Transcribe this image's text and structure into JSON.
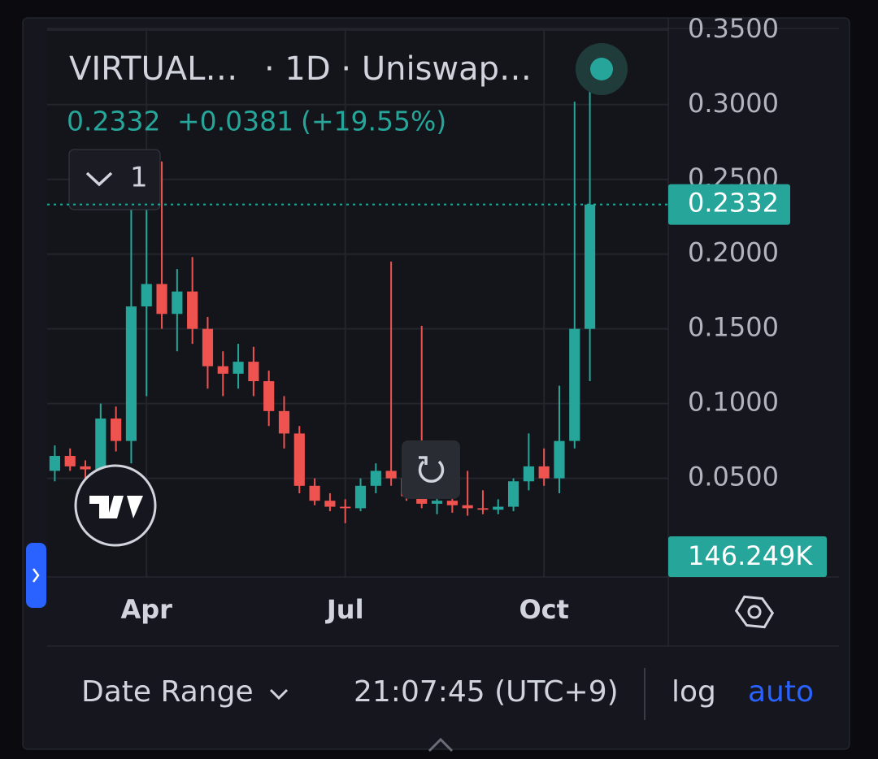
{
  "chart_data": {
    "type": "candlestick",
    "title": "VIRTUAL…",
    "subtitle": "· 1D · Uniswap…",
    "categories": [
      null,
      null,
      null,
      null,
      null,
      null,
      "Apr",
      null,
      null,
      null,
      null,
      null,
      null,
      null,
      null,
      null,
      null,
      null,
      null,
      "Jul",
      null,
      null,
      null,
      null,
      null,
      null,
      null,
      null,
      null,
      null,
      null,
      null,
      "Oct",
      null,
      null,
      null
    ],
    "open": [
      0.055,
      0.065,
      0.058,
      0.056,
      0.09,
      0.075,
      0.165,
      0.18,
      0.16,
      0.175,
      0.15,
      0.125,
      0.12,
      0.128,
      0.115,
      0.095,
      0.08,
      0.045,
      0.035,
      0.031,
      0.03,
      0.045,
      0.055,
      0.05,
      0.038,
      0.033,
      0.035,
      0.032,
      0.03,
      0.029,
      0.031,
      0.048,
      0.058,
      0.05,
      0.075,
      0.15
    ],
    "high": [
      0.072,
      0.07,
      0.062,
      0.1,
      0.098,
      0.235,
      0.23,
      0.262,
      0.19,
      0.198,
      0.158,
      0.135,
      0.14,
      0.138,
      0.122,
      0.105,
      0.085,
      0.05,
      0.04,
      0.036,
      0.05,
      0.06,
      0.195,
      0.06,
      0.152,
      0.045,
      0.042,
      0.055,
      0.042,
      0.036,
      0.05,
      0.08,
      0.07,
      0.112,
      0.302,
      0.316
    ],
    "low": [
      0.048,
      0.055,
      0.05,
      0.055,
      0.068,
      0.06,
      0.105,
      0.15,
      0.135,
      0.14,
      0.11,
      0.105,
      0.11,
      0.105,
      0.085,
      0.07,
      0.04,
      0.032,
      0.028,
      0.02,
      0.028,
      0.04,
      0.045,
      0.035,
      0.03,
      0.026,
      0.027,
      0.025,
      0.026,
      0.026,
      0.028,
      0.042,
      0.045,
      0.04,
      0.07,
      0.115
    ],
    "close": [
      0.065,
      0.058,
      0.056,
      0.09,
      0.075,
      0.165,
      0.18,
      0.16,
      0.175,
      0.15,
      0.125,
      0.12,
      0.128,
      0.115,
      0.095,
      0.08,
      0.045,
      0.035,
      0.031,
      0.03,
      0.045,
      0.055,
      0.05,
      0.038,
      0.033,
      0.035,
      0.032,
      0.03,
      0.029,
      0.031,
      0.048,
      0.058,
      0.05,
      0.075,
      0.15,
      0.2332
    ],
    "up_color": "#26a69a",
    "down_color": "#ef5350",
    "ylim": [
      -0.016,
      0.351
    ],
    "yticks": [
      {
        "value": 0.05,
        "label": "0.0500"
      },
      {
        "value": 0.1,
        "label": "0.1000"
      },
      {
        "value": 0.15,
        "label": "0.1500"
      },
      {
        "value": 0.2,
        "label": "0.2000"
      },
      {
        "value": 0.25,
        "label": "0.2500"
      },
      {
        "value": 0.3,
        "label": "0.3000"
      },
      {
        "value": 0.35,
        "label": "0.3500"
      }
    ],
    "grid": true,
    "change": "+0.0381",
    "change_pct": "(+19.55%)",
    "volume_label": "146.249K"
  },
  "ui": {
    "interval_button": "1",
    "date_range": "Date Range",
    "time": "21:07:45 (UTC+9)",
    "log": "log",
    "auto": "auto"
  }
}
